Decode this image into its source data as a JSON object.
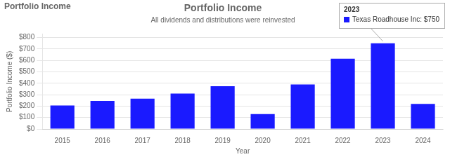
{
  "chart_data": {
    "type": "bar",
    "title": "Portfolio Income",
    "subtitle": "All dividends and distributions were reinvested",
    "xlabel": "Year",
    "ylabel": "Portfolio Income ($)",
    "categories": [
      "2015",
      "2016",
      "2017",
      "2018",
      "2019",
      "2020",
      "2021",
      "2022",
      "2023",
      "2024"
    ],
    "values": [
      205,
      245,
      265,
      310,
      375,
      130,
      390,
      615,
      750,
      220
    ],
    "color": "#1a1aff",
    "ylim": [
      0,
      830
    ],
    "yticks": [
      {
        "value": 0,
        "label": "$0"
      },
      {
        "value": 100,
        "label": "$100"
      },
      {
        "value": 200,
        "label": "$200"
      },
      {
        "value": 300,
        "label": "$300"
      },
      {
        "value": 400,
        "label": "$400"
      },
      {
        "value": 500,
        "label": "$500"
      },
      {
        "value": 600,
        "label": "$600"
      },
      {
        "value": 700,
        "label": "$700"
      },
      {
        "value": 800,
        "label": "$800"
      }
    ],
    "grid": true,
    "annotations": [
      {
        "text": "Portfolio Income"
      },
      {
        "text": "2023",
        "x": "2023"
      },
      {
        "text": "Texas Roadhouse Inc: $750",
        "x": "2023"
      }
    ]
  }
}
